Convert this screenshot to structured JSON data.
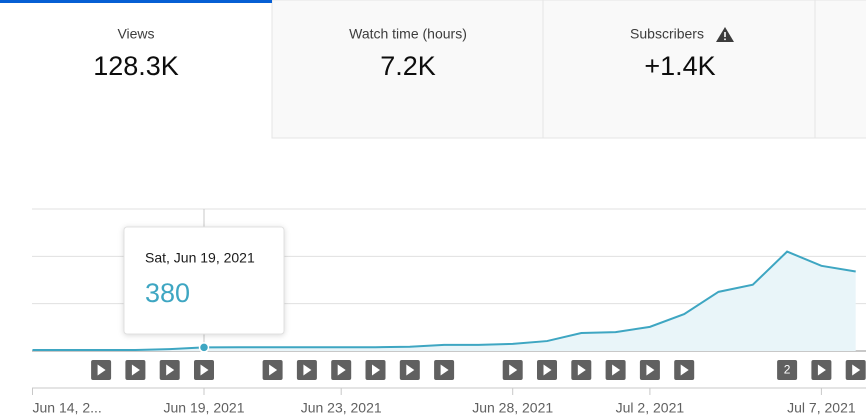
{
  "tabs": [
    {
      "label": "Views",
      "value": "128.3K"
    },
    {
      "label": "Watch time (hours)",
      "value": "7.2K"
    },
    {
      "label": "Subscribers",
      "value": "+1.4K"
    }
  ],
  "chart_data": {
    "type": "line",
    "color": "#3ea6c2",
    "fill": "#e9f5f9",
    "x": [
      "2021-06-14",
      "2021-06-15",
      "2021-06-16",
      "2021-06-17",
      "2021-06-18",
      "2021-06-19",
      "2021-06-20",
      "2021-06-21",
      "2021-06-22",
      "2021-06-23",
      "2021-06-24",
      "2021-06-25",
      "2021-06-26",
      "2021-06-27",
      "2021-06-28",
      "2021-06-29",
      "2021-06-30",
      "2021-07-01",
      "2021-07-02",
      "2021-07-03",
      "2021-07-04",
      "2021-07-05",
      "2021-07-06",
      "2021-07-07",
      "2021-07-08"
    ],
    "values": [
      100,
      100,
      100,
      100,
      200,
      380,
      400,
      400,
      400,
      400,
      400,
      450,
      650,
      650,
      750,
      1050,
      1900,
      2000,
      2550,
      3900,
      6250,
      7000,
      10500,
      9000,
      8400
    ],
    "ylim": [
      0,
      15000
    ],
    "gridlines": [
      0,
      5000,
      10000,
      15000
    ],
    "xticks": [
      {
        "value": "2021-06-14",
        "label": "Jun 14, 2..."
      },
      {
        "value": "2021-06-19",
        "label": "Jun 19, 2021"
      },
      {
        "value": "2021-06-23",
        "label": "Jun 23, 2021"
      },
      {
        "value": "2021-06-28",
        "label": "Jun 28, 2021"
      },
      {
        "value": "2021-07-02",
        "label": "Jul 2, 2021"
      },
      {
        "value": "2021-07-07",
        "label": "Jul 7, 2021"
      }
    ],
    "tooltip": {
      "label": "Sat, Jun 19, 2021"
    },
    "video_group_count": 2
  }
}
